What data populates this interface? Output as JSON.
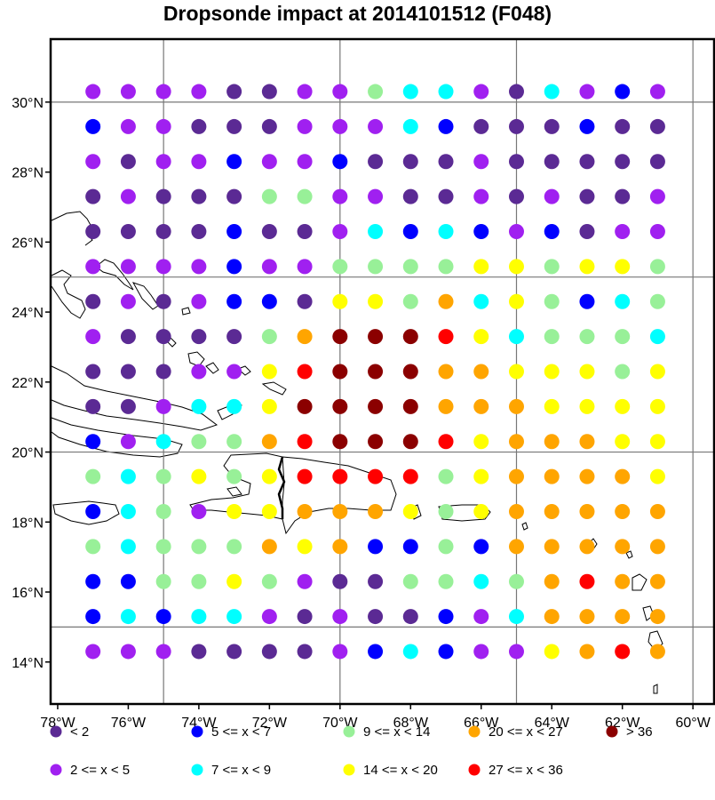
{
  "chart_data": {
    "type": "scatter",
    "title": "Dropsonde impact at 2014101512 (F048)",
    "x_ticks": [
      "78°W",
      "76°W",
      "74°W",
      "72°W",
      "70°W",
      "68°W",
      "66°W",
      "64°W",
      "62°W",
      "60°W"
    ],
    "x_tick_values": [
      -78,
      -76,
      -74,
      -72,
      -70,
      -68,
      -66,
      -64,
      -62,
      -60
    ],
    "y_ticks": [
      "14°N",
      "16°N",
      "18°N",
      "20°N",
      "22°N",
      "24°N",
      "26°N",
      "28°N",
      "30°N"
    ],
    "y_tick_values": [
      14,
      16,
      18,
      20,
      22,
      24,
      26,
      28,
      30
    ],
    "xlim": [
      -78.2,
      -59.4
    ],
    "ylim": [
      12.8,
      31.8
    ],
    "grid_lon": [
      -75,
      -70,
      -65,
      -60
    ],
    "grid_lat": [
      15,
      20,
      25,
      30
    ],
    "grid": true,
    "legend_position": "bottom",
    "categories": [
      {
        "label": "<  2",
        "color": "#5b2a94"
      },
      {
        "label": "2 <= x <  5",
        "color": "#a020f0"
      },
      {
        "label": "5 <= x <  7",
        "color": "#0000ff"
      },
      {
        "label": "7 <= x <  9",
        "color": "#00ffff"
      },
      {
        "label": "9 <= x < 14",
        "color": "#98f098"
      },
      {
        "label": "14 <= x < 20",
        "color": "#ffff00"
      },
      {
        "label": "20 <= x < 27",
        "color": "#ffa500"
      },
      {
        "label": "27 <= x < 36",
        "color": "#ff0000"
      },
      {
        "label": "> 36",
        "color": "#8b0000"
      }
    ],
    "grid_points": {
      "lons": [
        -77,
        -76,
        -75,
        -74,
        -73,
        -72,
        -71,
        -70,
        -69,
        -68,
        -67,
        -66,
        -65,
        -64,
        -63,
        -62,
        -61
      ],
      "lats": [
        30.3,
        29.3,
        28.3,
        27.3,
        26.3,
        25.3,
        24.3,
        23.3,
        22.3,
        21.3,
        20.3,
        19.3,
        18.3,
        17.3,
        16.3,
        15.3,
        14.3
      ],
      "category_rows": [
        [
          1,
          1,
          1,
          1,
          0,
          0,
          1,
          1,
          4,
          3,
          3,
          1,
          0,
          3,
          1,
          2,
          1
        ],
        [
          2,
          1,
          1,
          0,
          0,
          0,
          1,
          1,
          1,
          3,
          2,
          0,
          0,
          0,
          2,
          0,
          0
        ],
        [
          1,
          0,
          1,
          1,
          2,
          1,
          1,
          2,
          0,
          0,
          0,
          1,
          0,
          0,
          0,
          0,
          0
        ],
        [
          0,
          1,
          0,
          0,
          0,
          4,
          4,
          1,
          1,
          0,
          0,
          1,
          0,
          1,
          0,
          0,
          1
        ],
        [
          0,
          0,
          0,
          0,
          2,
          0,
          0,
          1,
          3,
          2,
          3,
          2,
          1,
          2,
          0,
          1,
          1
        ],
        [
          1,
          1,
          1,
          1,
          2,
          1,
          1,
          4,
          4,
          4,
          4,
          5,
          5,
          4,
          5,
          5,
          4
        ],
        [
          0,
          1,
          0,
          1,
          2,
          2,
          0,
          5,
          5,
          4,
          6,
          3,
          5,
          4,
          2,
          3,
          4
        ],
        [
          1,
          0,
          0,
          0,
          0,
          4,
          6,
          8,
          8,
          8,
          7,
          5,
          3,
          4,
          4,
          4,
          3
        ],
        [
          0,
          0,
          0,
          1,
          1,
          5,
          7,
          8,
          8,
          8,
          6,
          6,
          5,
          5,
          5,
          4,
          5
        ],
        [
          0,
          0,
          1,
          3,
          3,
          5,
          8,
          8,
          8,
          8,
          6,
          6,
          6,
          5,
          5,
          5,
          5
        ],
        [
          2,
          1,
          3,
          4,
          4,
          6,
          7,
          8,
          8,
          8,
          7,
          5,
          6,
          6,
          6,
          5,
          5
        ],
        [
          4,
          3,
          4,
          5,
          4,
          5,
          7,
          7,
          7,
          7,
          4,
          5,
          6,
          6,
          6,
          6,
          5
        ],
        [
          2,
          3,
          4,
          1,
          5,
          5,
          6,
          6,
          6,
          5,
          4,
          5,
          6,
          6,
          6,
          6,
          6
        ],
        [
          4,
          3,
          4,
          4,
          4,
          6,
          5,
          6,
          2,
          2,
          4,
          2,
          6,
          6,
          6,
          6,
          6
        ],
        [
          2,
          2,
          4,
          4,
          5,
          4,
          1,
          0,
          0,
          4,
          4,
          3,
          4,
          6,
          7,
          6,
          6
        ],
        [
          2,
          3,
          2,
          3,
          3,
          1,
          0,
          1,
          0,
          0,
          2,
          1,
          3,
          6,
          6,
          6,
          6
        ],
        [
          1,
          1,
          1,
          0,
          0,
          0,
          0,
          1,
          2,
          3,
          2,
          1,
          1,
          5,
          6,
          7,
          6
        ]
      ]
    }
  }
}
